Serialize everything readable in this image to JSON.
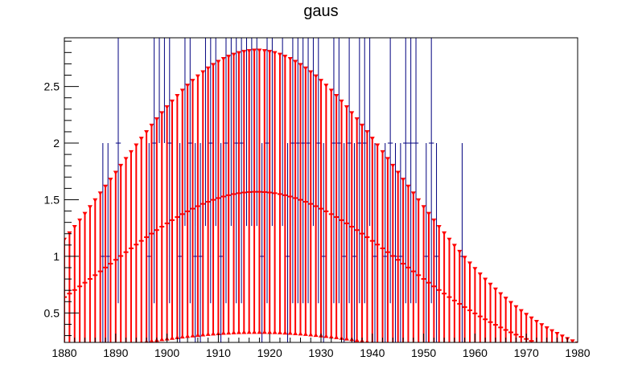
{
  "chart_data": {
    "type": "scatter",
    "title": "gaus",
    "xlabel": "",
    "ylabel": "",
    "xlim": [
      1880,
      1980
    ],
    "ylim": [
      0.24,
      2.93
    ],
    "x_ticks": [
      1880,
      1890,
      1900,
      1910,
      1920,
      1930,
      1940,
      1950,
      1960,
      1970,
      1980
    ],
    "x_tick_labels": [
      "1880",
      "1890",
      "1900",
      "1910",
      "1920",
      "1930",
      "1940",
      "1950",
      "1960",
      "1970",
      "1980"
    ],
    "y_ticks": [
      0.5,
      1,
      1.5,
      2,
      2.5
    ],
    "y_tick_labels": [
      "0.5",
      "1",
      "1.5",
      "2",
      "2.5"
    ],
    "grid": false,
    "legend": "none",
    "histogram": {
      "name": "",
      "color": "#00007f",
      "bin_width": 1,
      "bin_starts": [
        1887,
        1888,
        1890,
        1896,
        1897,
        1898,
        1899,
        1900,
        1902,
        1903,
        1904,
        1905,
        1906,
        1907,
        1908,
        1909,
        1910,
        1911,
        1912,
        1913,
        1914,
        1915,
        1916,
        1917,
        1918,
        1919,
        1920,
        1922,
        1923,
        1924,
        1925,
        1926,
        1927,
        1928,
        1929,
        1930,
        1932,
        1933,
        1934,
        1935,
        1936,
        1937,
        1938,
        1939,
        1940,
        1942,
        1943,
        1944,
        1945,
        1946,
        1947,
        1948,
        1950,
        1951,
        1952,
        1957
      ],
      "values": [
        1,
        1,
        2,
        1,
        2,
        4,
        4,
        2,
        1,
        3,
        2,
        1,
        1,
        3,
        2,
        3,
        1,
        2,
        3,
        2,
        2,
        3,
        3,
        3,
        1,
        2,
        3,
        3,
        1,
        2,
        2,
        2,
        2,
        3,
        2,
        1,
        2,
        2,
        1,
        2,
        1,
        2,
        2,
        3,
        1,
        1,
        2,
        1,
        1,
        2,
        2,
        2,
        1,
        2,
        1,
        1
      ]
    },
    "function": {
      "name": "gaus",
      "color": "#ff0000",
      "constant": 1.57,
      "mean": 1917.5,
      "sigma": 28.0,
      "band_constant": 2.82,
      "band_lower_constant": 0.33,
      "x_start": 1880,
      "x_end": 1980,
      "step": 1
    }
  }
}
